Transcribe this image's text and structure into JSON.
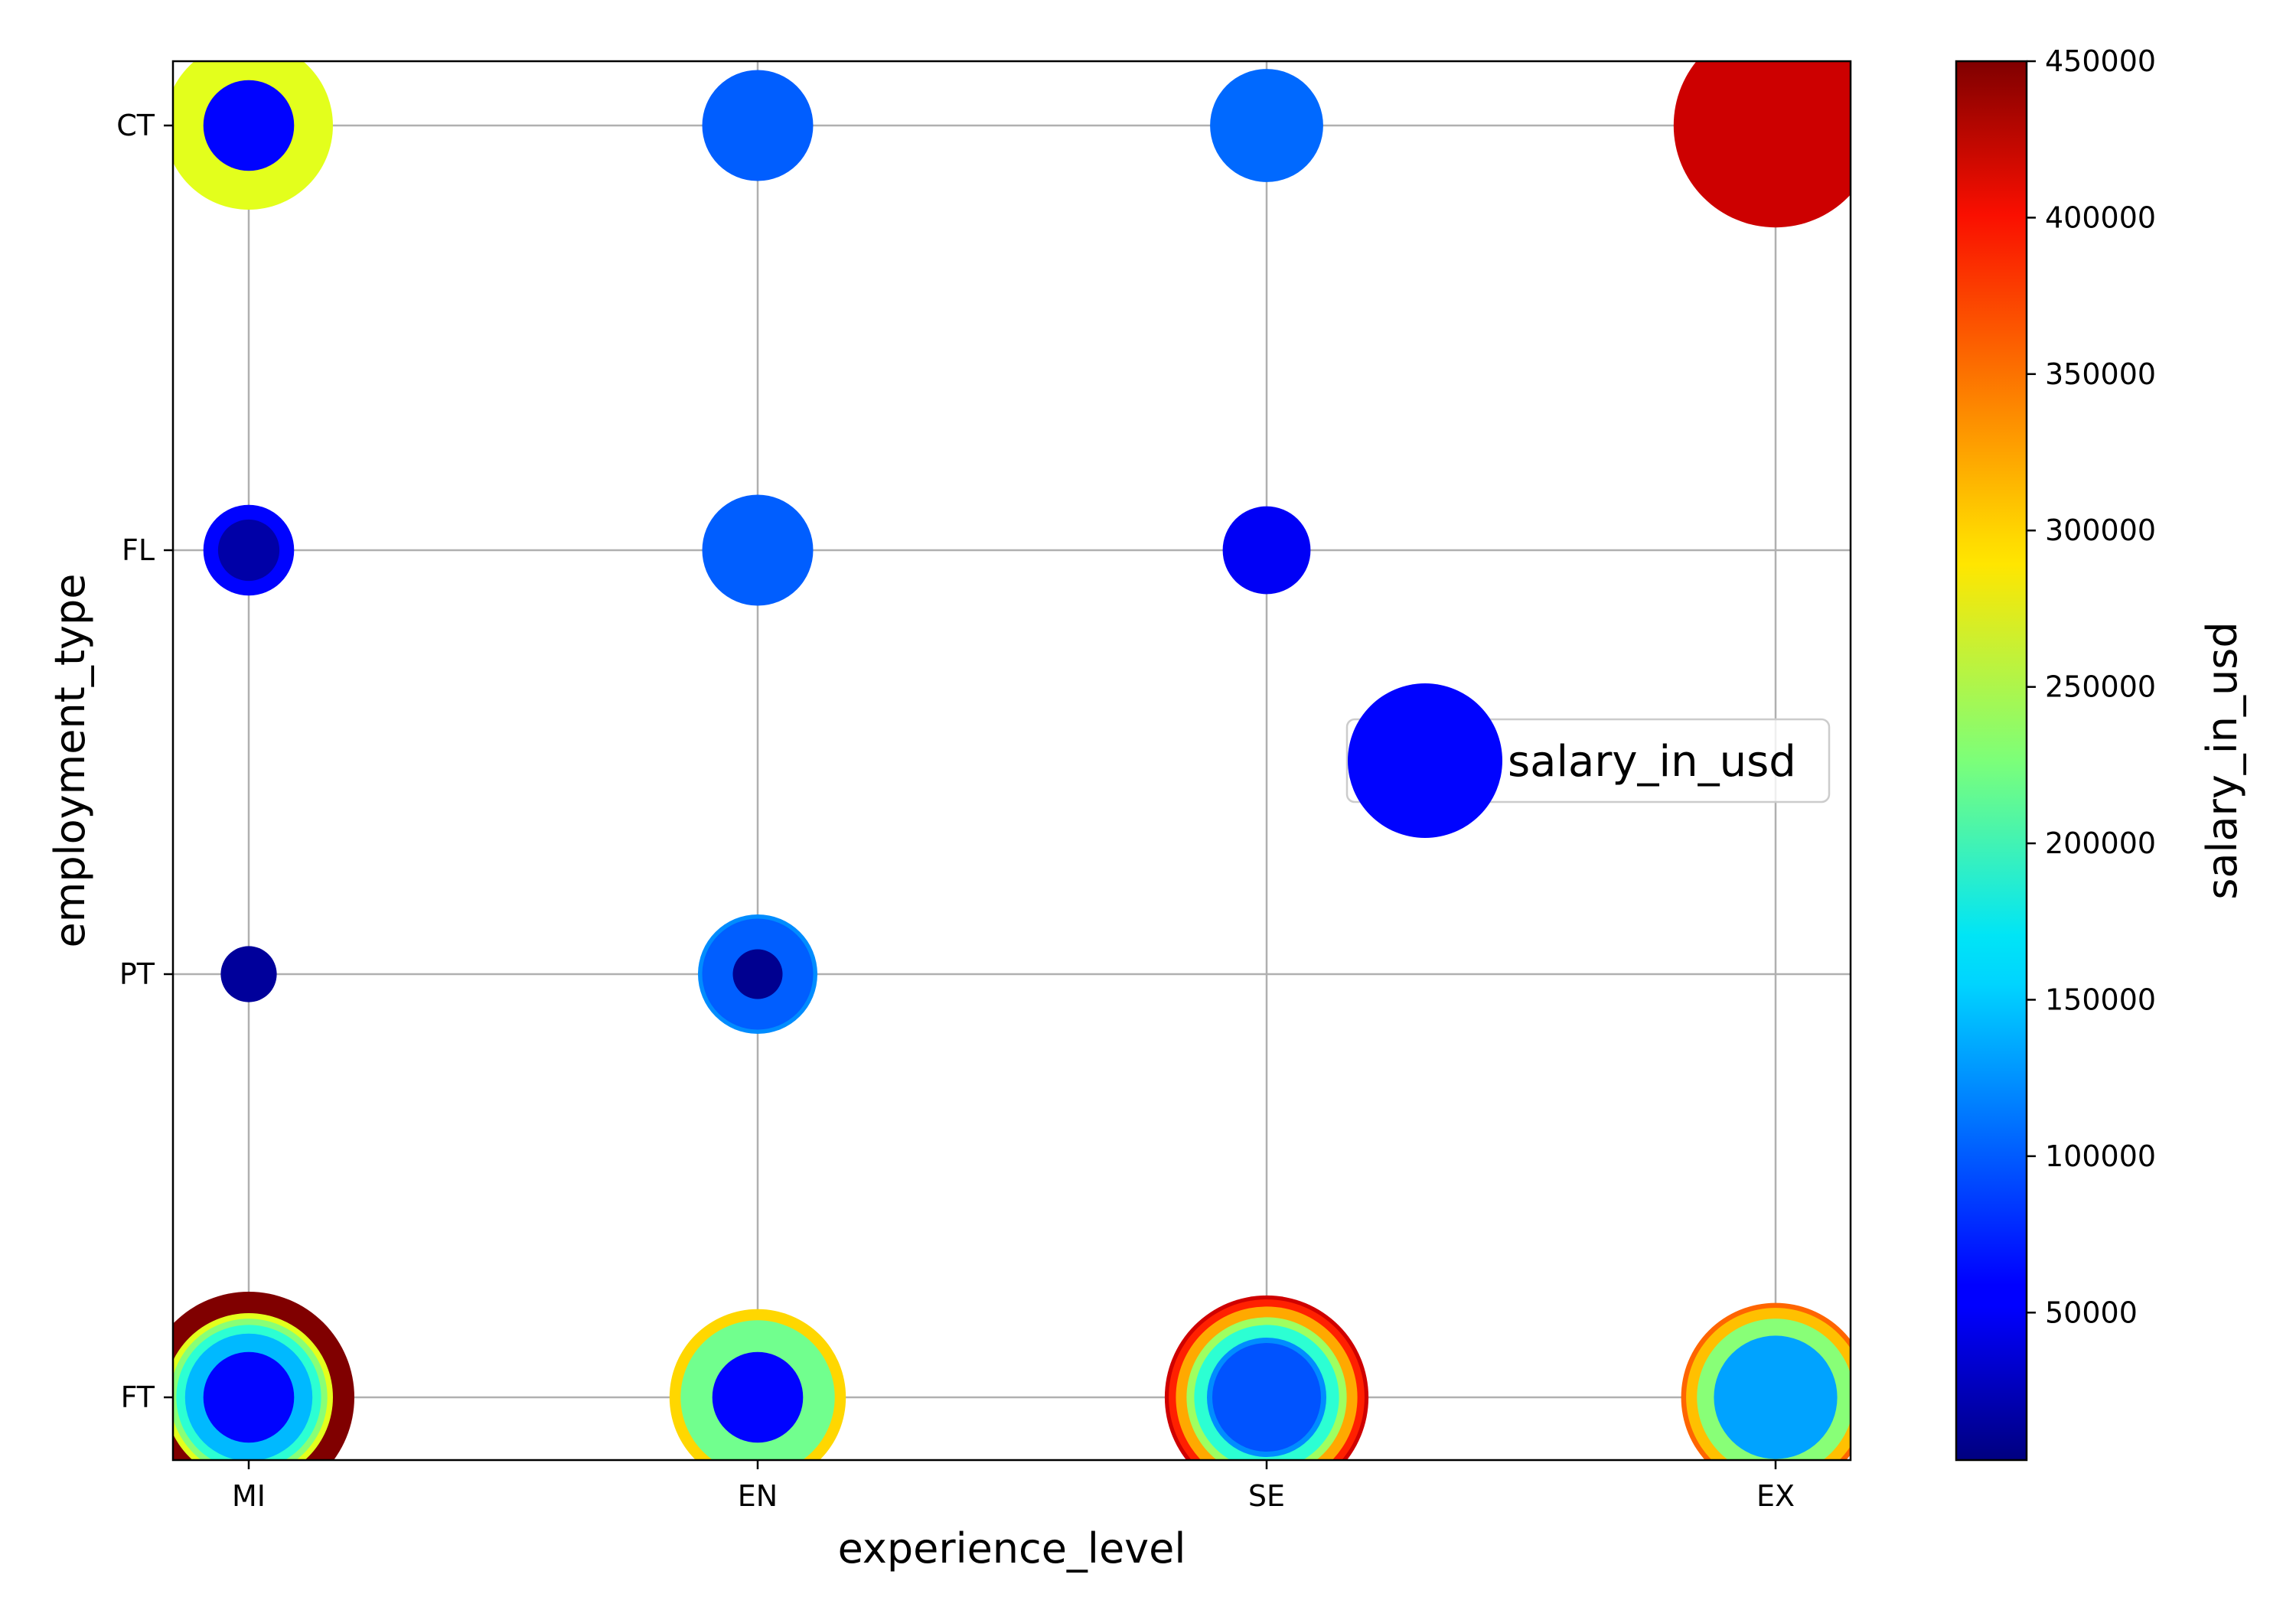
{
  "chart_data": {
    "type": "scatter",
    "title": "",
    "xlabel": "experience_level",
    "ylabel": "employment_type",
    "x_categories": [
      "MI",
      "EN",
      "SE",
      "EX"
    ],
    "y_categories": [
      "FT",
      "PT",
      "FL",
      "CT"
    ],
    "grid": true,
    "legend": {
      "label": "salary_in_usd",
      "location": "center-right"
    },
    "colorbar": {
      "label": "salary_in_usd",
      "min": 2859,
      "max": 450000,
      "ticks": [
        "50000",
        "100000",
        "150000",
        "200000",
        "250000",
        "300000",
        "350000",
        "400000",
        "450000"
      ]
    },
    "points": [
      {
        "x": "MI",
        "y": "FT",
        "salary_in_usd": 450000
      },
      {
        "x": "MI",
        "y": "FT",
        "salary_in_usd": 270000
      },
      {
        "x": "MI",
        "y": "FT",
        "salary_in_usd": 230000
      },
      {
        "x": "MI",
        "y": "FT",
        "salary_in_usd": 190000
      },
      {
        "x": "MI",
        "y": "FT",
        "salary_in_usd": 140000
      },
      {
        "x": "MI",
        "y": "FT",
        "salary_in_usd": 60000
      },
      {
        "x": "EN",
        "y": "FT",
        "salary_in_usd": 300000
      },
      {
        "x": "EN",
        "y": "FT",
        "salary_in_usd": 220000
      },
      {
        "x": "EN",
        "y": "FT",
        "salary_in_usd": 60000
      },
      {
        "x": "SE",
        "y": "FT",
        "salary_in_usd": 415000
      },
      {
        "x": "SE",
        "y": "FT",
        "salary_in_usd": 380000
      },
      {
        "x": "SE",
        "y": "FT",
        "salary_in_usd": 320000
      },
      {
        "x": "SE",
        "y": "FT",
        "salary_in_usd": 240000
      },
      {
        "x": "SE",
        "y": "FT",
        "salary_in_usd": 190000
      },
      {
        "x": "SE",
        "y": "FT",
        "salary_in_usd": 120000
      },
      {
        "x": "SE",
        "y": "FT",
        "salary_in_usd": 95000
      },
      {
        "x": "EX",
        "y": "FT",
        "salary_in_usd": 350000
      },
      {
        "x": "EX",
        "y": "FT",
        "salary_in_usd": 310000
      },
      {
        "x": "EX",
        "y": "FT",
        "salary_in_usd": 230000
      },
      {
        "x": "EX",
        "y": "FT",
        "salary_in_usd": 130000
      },
      {
        "x": "MI",
        "y": "PT",
        "salary_in_usd": 15000
      },
      {
        "x": "EN",
        "y": "PT",
        "salary_in_usd": 120000
      },
      {
        "x": "EN",
        "y": "PT",
        "salary_in_usd": 100000
      },
      {
        "x": "EN",
        "y": "PT",
        "salary_in_usd": 10000
      },
      {
        "x": "MI",
        "y": "FL",
        "salary_in_usd": 60000
      },
      {
        "x": "MI",
        "y": "FL",
        "salary_in_usd": 20000
      },
      {
        "x": "EN",
        "y": "FL",
        "salary_in_usd": 100000
      },
      {
        "x": "SE",
        "y": "FL",
        "salary_in_usd": 55000
      },
      {
        "x": "MI",
        "y": "CT",
        "salary_in_usd": 270000
      },
      {
        "x": "MI",
        "y": "CT",
        "salary_in_usd": 60000
      },
      {
        "x": "EN",
        "y": "CT",
        "salary_in_usd": 100000
      },
      {
        "x": "SE",
        "y": "CT",
        "salary_in_usd": 105000
      },
      {
        "x": "EX",
        "y": "CT",
        "salary_in_usd": 416000
      }
    ]
  }
}
